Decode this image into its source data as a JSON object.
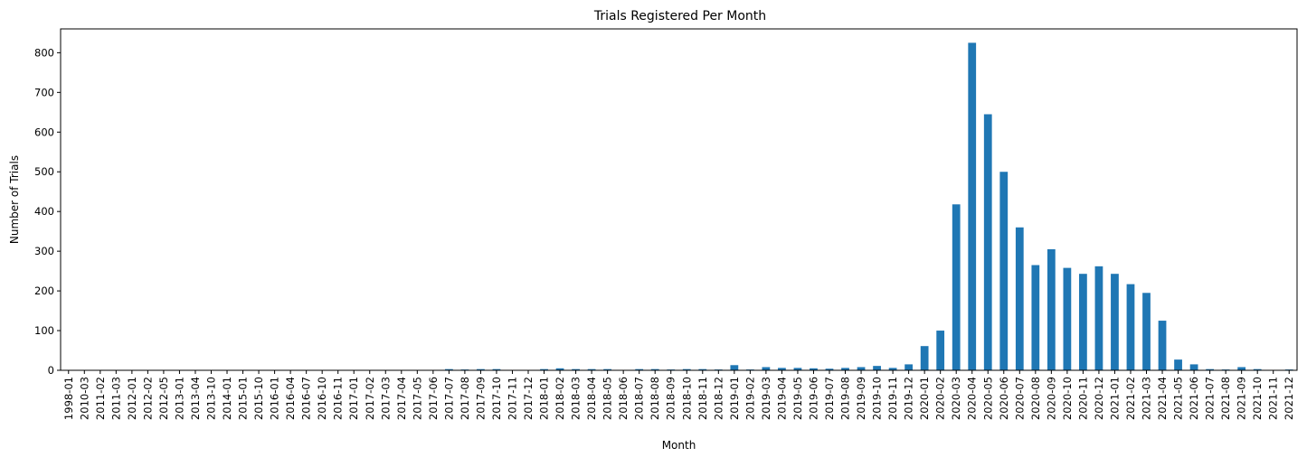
{
  "chart_data": {
    "type": "bar",
    "title": "Trials Registered Per Month",
    "xlabel": "Month",
    "ylabel": "Number of Trials",
    "ylim": [
      0,
      860
    ],
    "yticks": [
      0,
      100,
      200,
      300,
      400,
      500,
      600,
      700,
      800
    ],
    "grid": false,
    "bar_color": "#1f77b4",
    "categories": [
      "1998-01",
      "2010-03",
      "2011-02",
      "2011-03",
      "2012-01",
      "2012-02",
      "2012-05",
      "2013-01",
      "2013-04",
      "2013-10",
      "2014-01",
      "2015-01",
      "2015-10",
      "2016-01",
      "2016-04",
      "2016-07",
      "2016-10",
      "2016-11",
      "2017-01",
      "2017-02",
      "2017-03",
      "2017-04",
      "2017-05",
      "2017-06",
      "2017-07",
      "2017-08",
      "2017-09",
      "2017-10",
      "2017-11",
      "2017-12",
      "2018-01",
      "2018-02",
      "2018-03",
      "2018-04",
      "2018-05",
      "2018-06",
      "2018-07",
      "2018-08",
      "2018-09",
      "2018-10",
      "2018-11",
      "2018-12",
      "2019-01",
      "2019-02",
      "2019-03",
      "2019-04",
      "2019-05",
      "2019-06",
      "2019-07",
      "2019-08",
      "2019-09",
      "2019-10",
      "2019-11",
      "2019-12",
      "2020-01",
      "2020-02",
      "2020-03",
      "2020-04",
      "2020-05",
      "2020-06",
      "2020-07",
      "2020-08",
      "2020-09",
      "2020-10",
      "2020-11",
      "2020-12",
      "2021-01",
      "2021-02",
      "2021-03",
      "2021-04",
      "2021-05",
      "2021-06",
      "2021-07",
      "2021-08",
      "2021-09",
      "2021-10",
      "2021-11",
      "2021-12"
    ],
    "values": [
      1,
      1,
      1,
      1,
      1,
      1,
      1,
      1,
      1,
      1,
      1,
      1,
      1,
      1,
      1,
      1,
      1,
      1,
      1,
      1,
      1,
      1,
      1,
      1,
      3,
      2,
      3,
      3,
      1,
      1,
      3,
      5,
      3,
      3,
      3,
      1,
      3,
      3,
      2,
      3,
      3,
      2,
      13,
      2,
      8,
      6,
      6,
      5,
      4,
      6,
      8,
      11,
      6,
      15,
      61,
      100,
      418,
      825,
      645,
      500,
      360,
      265,
      305,
      258,
      243,
      262,
      243,
      217,
      195,
      125,
      27,
      15,
      3,
      2,
      8,
      3,
      1,
      2
    ]
  }
}
